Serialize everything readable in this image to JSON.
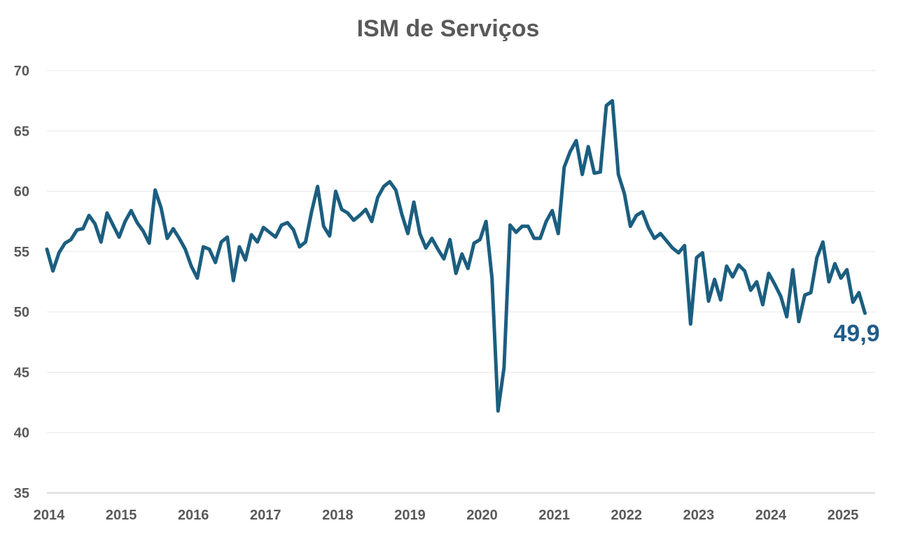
{
  "chart_data": {
    "type": "line",
    "title": "ISM de Serviços",
    "xlabel": "",
    "ylabel": "",
    "ylim": [
      35,
      70
    ],
    "yticks": [
      "70",
      "65",
      "60",
      "55",
      "50",
      "45",
      "40",
      "35"
    ],
    "ytick_values": [
      70,
      65,
      60,
      55,
      50,
      45,
      40,
      35
    ],
    "xticks": [
      "2014",
      "2015",
      "2016",
      "2017",
      "2018",
      "2019",
      "2020",
      "2021",
      "2022",
      "2023",
      "2024",
      "2025"
    ],
    "xlim": [
      2014.0,
      2025.4167
    ],
    "grid": true,
    "line_color": "#1b5e80",
    "end_label": "49,9",
    "end_label_color": "#1f5c8a",
    "series": [
      {
        "x_start": "2014-01",
        "frequency": "monthly",
        "values": [
          55.2,
          53.4,
          54.9,
          55.7,
          56.0,
          56.8,
          56.9,
          58.0,
          57.3,
          55.8,
          58.2,
          57.2,
          56.2,
          57.5,
          58.4,
          57.4,
          56.7,
          55.7,
          60.1,
          58.6,
          56.1,
          56.9,
          56.1,
          55.2,
          53.8,
          52.8,
          55.4,
          55.2,
          54.1,
          55.8,
          56.2,
          52.6,
          55.4,
          54.3,
          56.4,
          55.8,
          57.0,
          56.6,
          56.2,
          57.2,
          57.4,
          56.8,
          55.4,
          55.8,
          58.3,
          60.4,
          57.1,
          56.3,
          60.0,
          58.5,
          58.2,
          57.6,
          58.0,
          58.5,
          57.5,
          59.5,
          60.4,
          60.8,
          60.1,
          58.1,
          56.5,
          59.1,
          56.5,
          55.3,
          56.1,
          55.2,
          54.4,
          56.0,
          53.2,
          54.8,
          53.6,
          55.7,
          56.0,
          57.5,
          52.8,
          41.8,
          45.4,
          57.2,
          56.6,
          57.1,
          57.1,
          56.1,
          56.1,
          57.5,
          58.4,
          56.5,
          62.0,
          63.3,
          64.2,
          61.4,
          63.7,
          61.5,
          61.6,
          67.1,
          67.5,
          61.4,
          59.8,
          57.1,
          58.0,
          58.3,
          57.0,
          56.1,
          56.5,
          55.9,
          55.3,
          54.9,
          55.5,
          49.0,
          54.5,
          54.9,
          50.9,
          52.7,
          51.0,
          53.8,
          52.9,
          53.9,
          53.4,
          51.8,
          52.5,
          50.6,
          53.2,
          52.3,
          51.3,
          49.6,
          53.5,
          49.2,
          51.4,
          51.6,
          54.5,
          55.8,
          52.5,
          54.0,
          52.8,
          53.5,
          50.8,
          51.6,
          49.9
        ]
      }
    ]
  }
}
